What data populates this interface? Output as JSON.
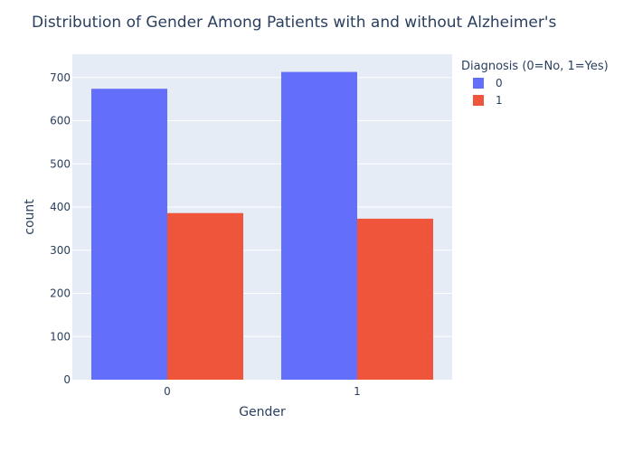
{
  "chart_data": {
    "type": "bar",
    "title": "Distribution of Gender Among Patients with and without Alzheimer's",
    "xlabel": "Gender",
    "ylabel": "count",
    "categories": [
      "0",
      "1"
    ],
    "series": [
      {
        "name": "0",
        "values": [
          674,
          713
        ],
        "color": "#636efa"
      },
      {
        "name": "1",
        "values": [
          386,
          373
        ],
        "color": "#ef553b"
      }
    ],
    "ylim": [
      0,
      754
    ],
    "yticks": [
      0,
      100,
      200,
      300,
      400,
      500,
      600,
      700
    ],
    "grid": true,
    "plot_background": "#e5ecf6",
    "legend": {
      "title": "Diagnosis (0=No, 1=Yes)",
      "placement": "top-right, outside plot"
    }
  }
}
